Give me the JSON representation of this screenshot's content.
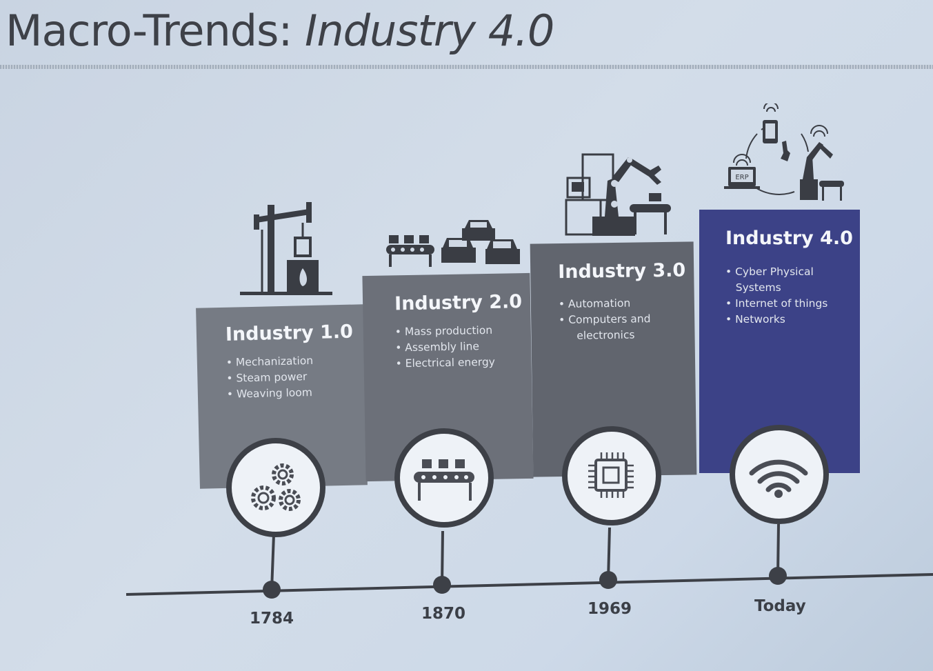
{
  "slide": {
    "title_prefix": "Macro-Trends: ",
    "title_emphasis": "Industry 4.0"
  },
  "eras": [
    {
      "title": "Industry 1.0",
      "bullets": [
        "Mechanization",
        "Steam power",
        "Weaving loom"
      ],
      "year": "1784",
      "top_icon": "steam-engine-icon",
      "circle_icon": "gears-icon"
    },
    {
      "title": "Industry 2.0",
      "bullets": [
        "Mass production",
        "Assembly line",
        "Electrical energy"
      ],
      "year": "1870",
      "top_icon": "assembly-line-cars-icon",
      "circle_icon": "conveyor-belt-icon"
    },
    {
      "title": "Industry 3.0",
      "bullets": [
        "Automation",
        "Computers and",
        "electronics"
      ],
      "year": "1969",
      "top_icon": "robot-arm-computer-icon",
      "circle_icon": "microchip-icon"
    },
    {
      "title": "Industry 4.0",
      "bullets": [
        "Cyber Physical",
        "Systems",
        "Internet of things",
        "Networks"
      ],
      "year": "Today",
      "top_icon": "connected-factory-icon",
      "circle_icon": "wifi-icon",
      "erp_label": "ERP"
    }
  ],
  "colors": {
    "card_1": "#767b84",
    "card_2": "#6c7079",
    "card_3": "#61656e",
    "card_4": "#3c4287",
    "timeline": "#3d4047"
  }
}
